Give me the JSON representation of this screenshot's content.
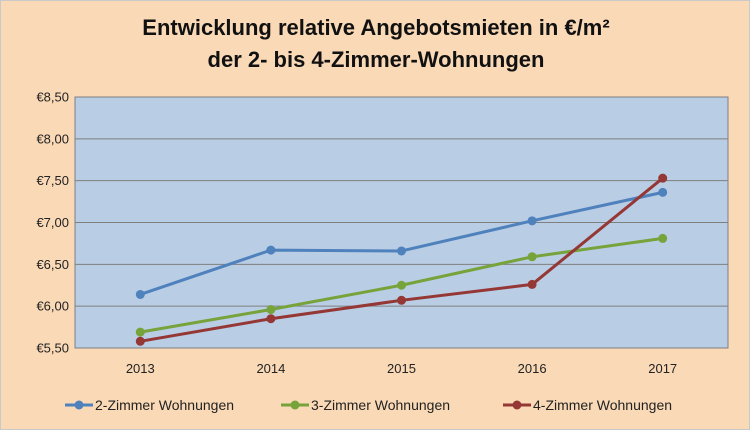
{
  "chart_data": {
    "type": "line",
    "title_lines": [
      "Entwicklung relative Angebotsmieten in €/m²",
      "der 2- bis 4-Zimmer-Wohnungen"
    ],
    "xlabel": "",
    "ylabel": "",
    "categories": [
      "2013",
      "2014",
      "2015",
      "2016",
      "2017"
    ],
    "ylim": [
      5.5,
      8.5
    ],
    "yticks": [
      5.5,
      6.0,
      6.5,
      7.0,
      7.5,
      8.0,
      8.5
    ],
    "ytick_labels": [
      "€5,50",
      "€6,00",
      "€6,50",
      "€7,00",
      "€7,50",
      "€8,00",
      "€8,50"
    ],
    "grid": true,
    "legend_position": "bottom",
    "series": [
      {
        "name": "2-Zimmer Wohnungen",
        "color": "#4f81bd",
        "values": [
          6.14,
          6.67,
          6.66,
          7.02,
          7.36
        ]
      },
      {
        "name": "3-Zimmer Wohnungen",
        "color": "#77a33b",
        "values": [
          5.69,
          5.96,
          6.25,
          6.59,
          6.81
        ]
      },
      {
        "name": "4-Zimmer Wohnungen",
        "color": "#953735",
        "values": [
          5.58,
          5.85,
          6.07,
          6.26,
          7.53
        ]
      }
    ],
    "colors": {
      "plot_background": "#b9cde5",
      "chart_background": "#fad9b7",
      "gridline": "#7f7f7f"
    }
  }
}
